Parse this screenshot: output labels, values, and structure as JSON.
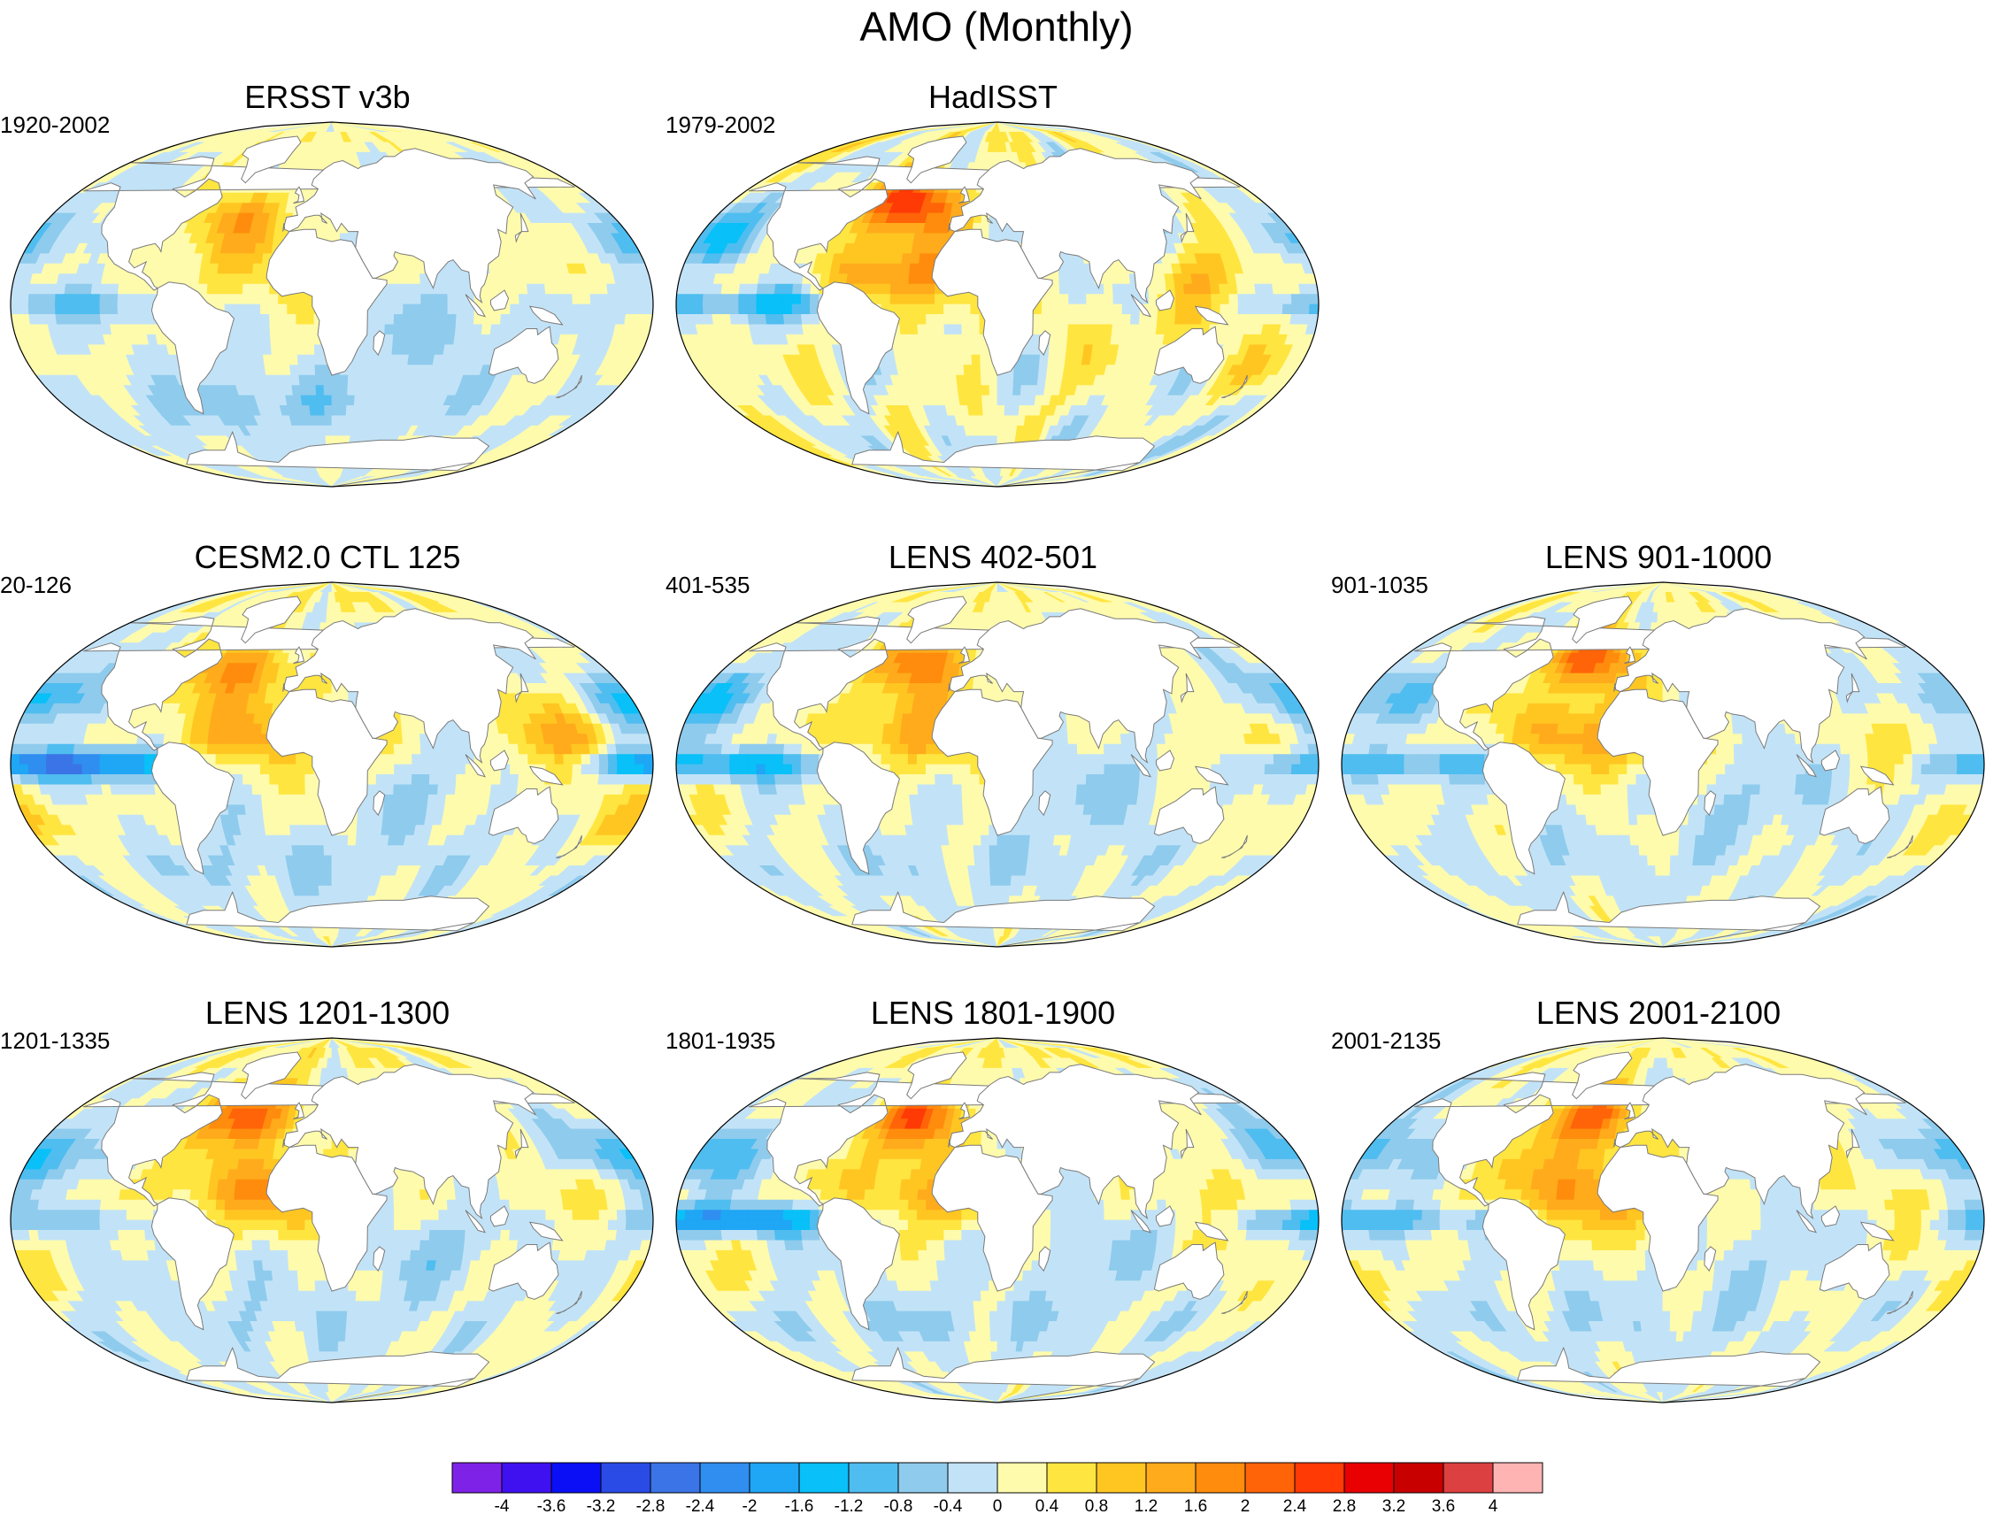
{
  "figure": {
    "title": "AMO (Monthly)"
  },
  "panels": [
    {
      "id": "ersst",
      "title": "ERSST v3b",
      "period": "1920-2002",
      "field": {
        "natl": 1.4,
        "natl_lon": -38,
        "natl_lat": 42,
        "tropatl": 0.5,
        "pac_eq": -0.8,
        "pac_n": -0.6,
        "wpac": 0.3,
        "indian": -0.5,
        "south": -0.6,
        "arctic": 0.3,
        "noise": 0.25
      }
    },
    {
      "id": "hadisst",
      "title": "HadISST",
      "period": "1979-2002",
      "field": {
        "natl": 2.9,
        "natl_lon": -40,
        "natl_lat": 50,
        "tropatl": 1.3,
        "pac_eq": -1.3,
        "pac_n": -1.1,
        "wpac": 0.9,
        "indian": 0.4,
        "south": 0.2,
        "arctic": 0.3,
        "noise": 0.45
      }
    },
    {
      "id": "ctl",
      "title": "CESM2.0 CTL 125",
      "period": "20-126",
      "field": {
        "natl": 1.9,
        "natl_lon": -42,
        "natl_lat": 47,
        "tropatl": 1.0,
        "pac_eq": -2.8,
        "pac_n": -1.4,
        "wpac": 1.2,
        "indian": -0.3,
        "south": -0.4,
        "arctic": 0.4,
        "noise": 0.3
      }
    },
    {
      "id": "lens402",
      "title": "LENS 402-501",
      "period": "401-535",
      "field": {
        "natl": 2.1,
        "natl_lon": -30,
        "natl_lat": 50,
        "tropatl": 1.0,
        "pac_eq": -1.6,
        "pac_n": -1.2,
        "wpac": 0.5,
        "indian": -0.4,
        "south": -0.3,
        "arctic": 0.3,
        "noise": 0.3
      }
    },
    {
      "id": "lens901",
      "title": "LENS 901-1000",
      "period": "901-1035",
      "field": {
        "natl": 2.3,
        "natl_lon": -28,
        "natl_lat": 52,
        "tropatl": 1.1,
        "pac_eq": -1.3,
        "pac_n": -1.0,
        "wpac": 0.5,
        "indian": -0.4,
        "south": -0.2,
        "arctic": 0.3,
        "noise": 0.3
      }
    },
    {
      "id": "lens1201",
      "title": "LENS 1201-1300",
      "period": "1201-1335",
      "field": {
        "natl": 2.4,
        "natl_lon": -35,
        "natl_lat": 52,
        "tropatl": 1.2,
        "pac_eq": -0.6,
        "pac_n": -1.3,
        "wpac": 0.4,
        "indian": -0.4,
        "south": -0.3,
        "arctic": 0.4,
        "noise": 0.3
      }
    },
    {
      "id": "lens1801",
      "title": "LENS 1801-1900",
      "period": "1801-1935",
      "field": {
        "natl": 2.3,
        "natl_lon": -32,
        "natl_lat": 50,
        "tropatl": 1.0,
        "pac_eq": -2.2,
        "pac_n": -1.3,
        "wpac": 0.7,
        "indian": -0.3,
        "south": -0.4,
        "arctic": 0.4,
        "noise": 0.3
      }
    },
    {
      "id": "lens2001",
      "title": "LENS 2001-2100",
      "period": "2001-2135",
      "field": {
        "natl": 2.2,
        "natl_lon": -30,
        "natl_lat": 50,
        "tropatl": 1.3,
        "pac_eq": -1.1,
        "pac_n": -1.1,
        "wpac": 0.5,
        "indian": -0.3,
        "south": -0.3,
        "arctic": 0.3,
        "noise": 0.3
      }
    }
  ],
  "colorbar": {
    "levels": [
      -4,
      -3.6,
      -3.2,
      -2.8,
      -2.4,
      -2,
      -1.6,
      -1.2,
      -0.8,
      -0.4,
      0,
      0.4,
      0.8,
      1.2,
      1.6,
      2,
      2.4,
      2.8,
      3.2,
      3.6,
      4
    ],
    "labels": [
      "-4",
      "-3.6",
      "-3.2",
      "-2.8",
      "-2.4",
      "-2",
      "-1.6",
      "-1.2",
      "-0.8",
      "-0.4",
      "0",
      "0.4",
      "0.8",
      "1.2",
      "1.6",
      "2",
      "2.4",
      "2.8",
      "3.2",
      "3.6",
      "4"
    ],
    "colors": [
      "#7f22e8",
      "#3f11f0",
      "#0a0ff5",
      "#2a4be6",
      "#3a74e6",
      "#2f8ef0",
      "#1fa6f5",
      "#09c0f8",
      "#4fbdf0",
      "#8fcbed",
      "#c2e3f7",
      "#fffbad",
      "#ffe540",
      "#ffc622",
      "#ffab1c",
      "#ff8c0c",
      "#ff6408",
      "#ff3a05",
      "#e80003",
      "#c80000",
      "#dc4040",
      "#ffb4b4"
    ]
  }
}
